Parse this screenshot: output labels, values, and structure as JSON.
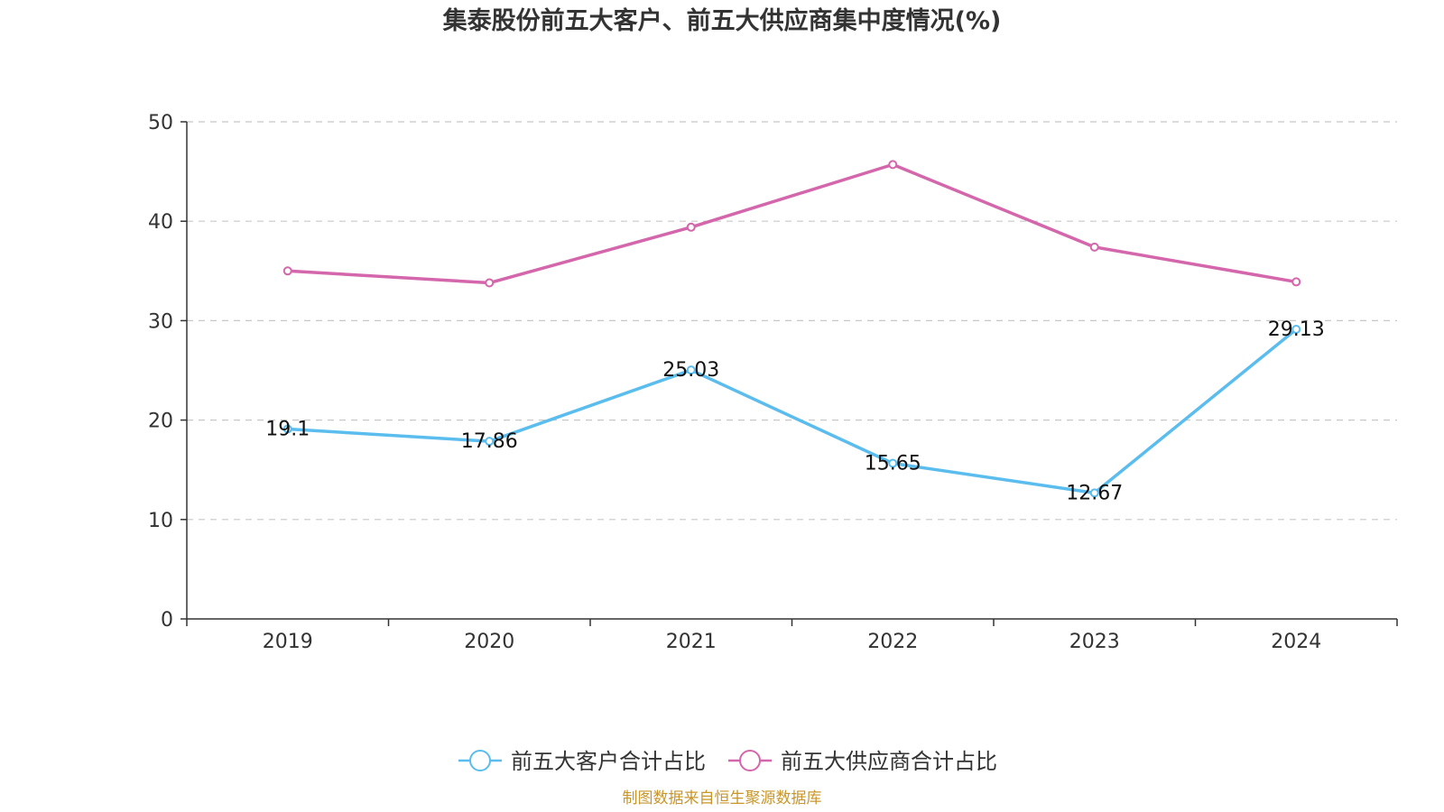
{
  "chart_data": {
    "type": "line",
    "title": "集泰股份前五大客户、前五大供应商集中度情况(%)",
    "categories": [
      "2019",
      "2020",
      "2021",
      "2022",
      "2023",
      "2024"
    ],
    "ylim": [
      0,
      50
    ],
    "yticks": [
      0,
      10,
      20,
      30,
      40,
      50
    ],
    "ytick_labels": [
      "0",
      "10",
      "20",
      "30",
      "40",
      "50"
    ],
    "grid": true,
    "legend_position": "bottom-center",
    "series": [
      {
        "name": "前五大客户合计占比",
        "color": "#5bbdee",
        "values": [
          19.1,
          17.86,
          25.03,
          15.65,
          12.67,
          29.13
        ],
        "labels": [
          "19.1",
          "17.86",
          "25.03",
          "15.65",
          "12.67",
          "29.13"
        ],
        "show_labels": true
      },
      {
        "name": "前五大供应商合计占比",
        "color": "#d466ab",
        "values": [
          35.0,
          33.8,
          39.4,
          45.7,
          37.4,
          33.9
        ],
        "show_labels": false
      }
    ]
  },
  "footer": {
    "source": "制图数据来自恒生聚源数据库",
    "source_color": "#c8962a"
  }
}
